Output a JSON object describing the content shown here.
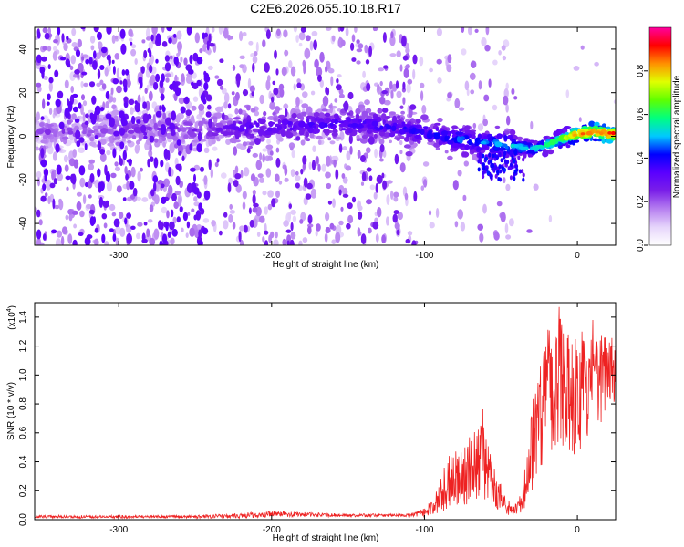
{
  "title": "C2E6.2026.055.10.18.R17",
  "chart_data": [
    {
      "type": "heatmap",
      "name": "spectrogram",
      "xlabel": "Height of straight line (km)",
      "ylabel": "Frequency (Hz)",
      "xlim": [
        -355,
        25
      ],
      "ylim": [
        -50,
        50
      ],
      "xticks": [
        -300,
        -200,
        -100,
        0
      ],
      "xtick_labels": [
        "-300",
        "-200",
        "-100",
        "0"
      ],
      "yticks": [
        40,
        20,
        0,
        -20,
        -40
      ],
      "ytick_labels": [
        "40",
        "20",
        "0",
        "-20",
        "-40"
      ],
      "colorbar": {
        "label": "Normalized spectral amplitude",
        "range": [
          0,
          1
        ],
        "ticks": [
          0,
          0.2,
          0.4,
          0.6,
          0.8
        ],
        "tick_labels": [
          "0.0",
          "0.2",
          "0.4",
          "0.6",
          "0.8"
        ],
        "colors": [
          "#ffffff",
          "#e6d5fb",
          "#b67ff0",
          "#7a1fe8",
          "#5a00ff",
          "#0000ff",
          "#00c8ff",
          "#00ff80",
          "#60ff00",
          "#e0ff00",
          "#ff9000",
          "#ff0000",
          "#ff00a0"
        ]
      },
      "ridge": [
        {
          "x": -355,
          "f": 2,
          "amp": 0.18
        },
        {
          "x": -300,
          "f": 3,
          "amp": 0.2
        },
        {
          "x": -240,
          "f": 3,
          "amp": 0.22
        },
        {
          "x": -220,
          "f": 4,
          "amp": 0.3
        },
        {
          "x": -180,
          "f": 5,
          "amp": 0.32
        },
        {
          "x": -150,
          "f": 6,
          "amp": 0.33
        },
        {
          "x": -120,
          "f": 4,
          "amp": 0.34
        },
        {
          "x": -100,
          "f": 2,
          "amp": 0.36
        },
        {
          "x": -80,
          "f": -1,
          "amp": 0.42
        },
        {
          "x": -60,
          "f": -3,
          "amp": 0.45
        },
        {
          "x": -45,
          "f": -4,
          "amp": 0.48
        },
        {
          "x": -30,
          "f": -6,
          "amp": 0.5
        },
        {
          "x": -20,
          "f": -4,
          "amp": 0.55
        },
        {
          "x": -10,
          "f": -1,
          "amp": 0.65
        },
        {
          "x": 0,
          "f": 1,
          "amp": 0.85
        },
        {
          "x": 10,
          "f": 2,
          "amp": 0.9
        },
        {
          "x": 25,
          "f": 1,
          "amp": 0.92
        }
      ]
    },
    {
      "type": "line",
      "name": "snr",
      "series": [
        {
          "name": "SNR",
          "color": "#ee2222"
        }
      ],
      "xlabel": "Height of straight line (km)",
      "ylabel": "SNR (10 * v/v)",
      "yscale_label": "(x10",
      "yscale_exponent": "4",
      "yscale_close": ")",
      "xlim": [
        -355,
        25
      ],
      "ylim": [
        0,
        1.5
      ],
      "xticks": [
        -300,
        -200,
        -100,
        0
      ],
      "xtick_labels": [
        "-300",
        "-200",
        "-100",
        "0"
      ],
      "yticks": [
        0,
        0.2,
        0.4,
        0.6,
        0.8,
        1.0,
        1.2,
        1.4
      ],
      "ytick_labels": [
        "0.0",
        "0.2",
        "0.4",
        "0.6",
        "0.8",
        "1.0",
        "1.2",
        "1.4"
      ],
      "envelope": [
        [
          -355,
          0.02,
          0.01
        ],
        [
          -250,
          0.02,
          0.01
        ],
        [
          -215,
          0.03,
          0.02
        ],
        [
          -200,
          0.04,
          0.02
        ],
        [
          -150,
          0.03,
          0.01
        ],
        [
          -110,
          0.03,
          0.01
        ],
        [
          -100,
          0.05,
          0.03
        ],
        [
          -92,
          0.12,
          0.08
        ],
        [
          -85,
          0.25,
          0.18
        ],
        [
          -80,
          0.3,
          0.2
        ],
        [
          -72,
          0.32,
          0.22
        ],
        [
          -64,
          0.45,
          0.3
        ],
        [
          -58,
          0.3,
          0.2
        ],
        [
          -50,
          0.15,
          0.1
        ],
        [
          -42,
          0.05,
          0.03
        ],
        [
          -36,
          0.12,
          0.1
        ],
        [
          -30,
          0.5,
          0.35
        ],
        [
          -22,
          0.85,
          0.45
        ],
        [
          -15,
          0.95,
          0.45
        ],
        [
          -10,
          1.0,
          0.5
        ],
        [
          -5,
          0.9,
          0.45
        ],
        [
          0,
          0.85,
          0.4
        ],
        [
          10,
          0.9,
          0.35
        ],
        [
          20,
          1.05,
          0.3
        ],
        [
          25,
          1.08,
          0.25
        ]
      ],
      "peaks": [
        [
          -62,
          0.76
        ],
        [
          -27,
          0.74
        ],
        [
          -25,
          0.93
        ],
        [
          -17,
          1.18
        ],
        [
          -12,
          1.47
        ],
        [
          -6,
          1.28
        ],
        [
          3,
          1.3
        ],
        [
          10,
          1.38
        ],
        [
          22,
          1.2
        ]
      ]
    }
  ]
}
